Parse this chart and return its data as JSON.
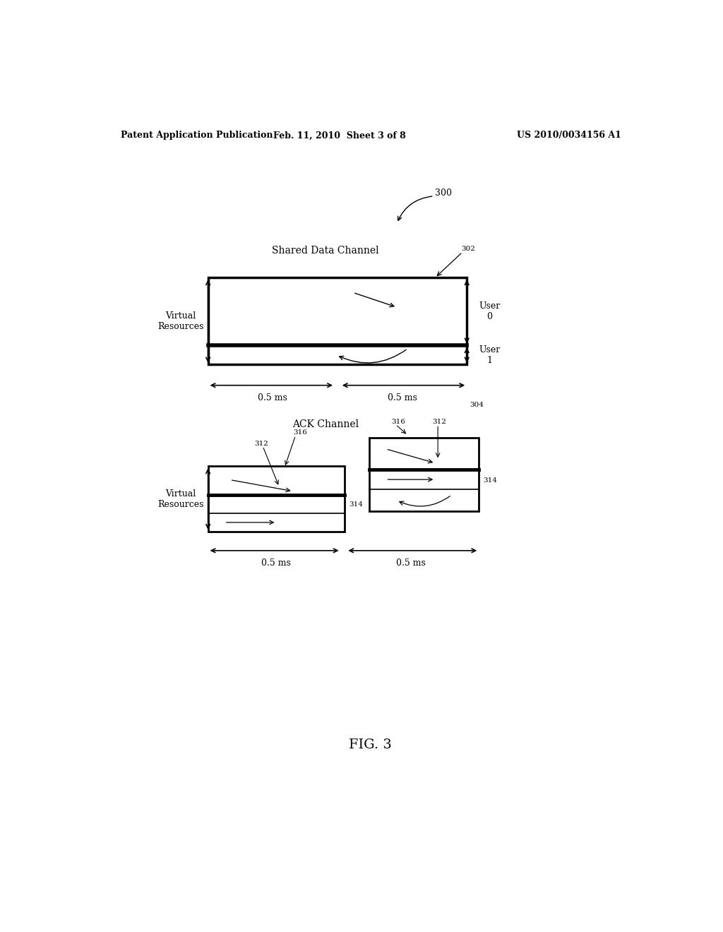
{
  "bg_color": "#ffffff",
  "header_left": "Patent Application Publication",
  "header_mid": "Feb. 11, 2010  Sheet 3 of 8",
  "header_right": "US 2010/0034156 A1",
  "fig_label": "FIG. 3",
  "label_300": "300",
  "label_302": "302",
  "label_304": "304",
  "label_312a": "312",
  "label_314a": "314",
  "label_316a": "316",
  "label_312b": "312",
  "label_314b": "314",
  "label_316b": "316",
  "shared_data_channel_label": "Shared Data Channel",
  "ack_channel_label": "ACK Channel",
  "virtual_resources_label1": "Virtual\nResources",
  "virtual_resources_label2": "Virtual\nResources",
  "user0_label": "User\n0",
  "user1_label": "User\n1",
  "time_label": "0.5 ms"
}
